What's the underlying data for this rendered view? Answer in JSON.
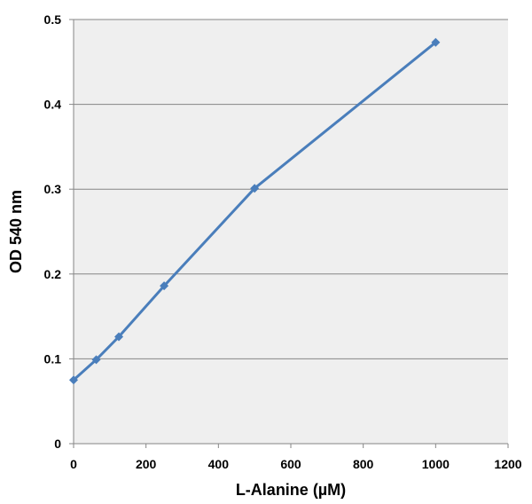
{
  "chart_data": {
    "type": "line",
    "title": "",
    "xlabel": "L-Alanine (µM)",
    "ylabel": "OD 540 nm",
    "xlim": [
      0,
      1200
    ],
    "ylim": [
      0,
      0.5
    ],
    "x_ticks": [
      "0",
      "200",
      "400",
      "600",
      "800",
      "1000",
      "1200"
    ],
    "y_ticks": [
      "0",
      "0.1",
      "0.2",
      "0.3",
      "0.4",
      "0.5"
    ],
    "grid": "horizontal",
    "legend": "none",
    "series": [
      {
        "color": "#4a7ebb",
        "marker": "diamond",
        "x": [
          0,
          62.5,
          125,
          250,
          500,
          1000
        ],
        "y": [
          0.075,
          0.099,
          0.126,
          0.186,
          0.301,
          0.473
        ]
      }
    ]
  }
}
